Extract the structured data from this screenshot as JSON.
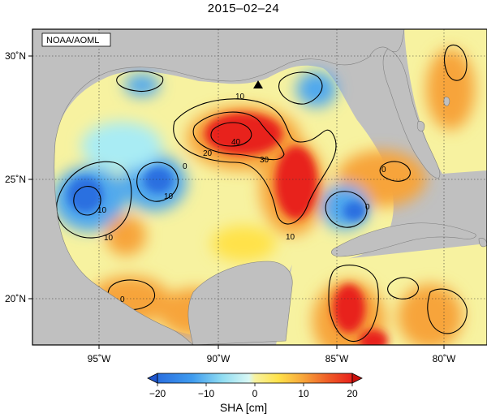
{
  "title": "2015‒02‒24",
  "credit": "NOAA/AOML",
  "axes": {
    "lon_ticks": [
      {
        "value": -95,
        "label": "95˚W"
      },
      {
        "value": -90,
        "label": "90˚W"
      },
      {
        "value": -85,
        "label": "85˚W"
      },
      {
        "value": -80,
        "label": "80˚W"
      }
    ],
    "lat_ticks": [
      {
        "value": 30,
        "label": "30˚N"
      },
      {
        "value": 25,
        "label": "25˚N"
      },
      {
        "value": 20,
        "label": "20˚N"
      }
    ],
    "lon_range": [
      -98.5,
      -77.5
    ],
    "lat_range": [
      18,
      31.3
    ],
    "grid": "dotted"
  },
  "colorbar": {
    "label": "SHA [cm]",
    "ticks": [
      "−20",
      "−10",
      "0",
      "10",
      "20"
    ],
    "range": [
      -20,
      20
    ],
    "extend": "both"
  },
  "contour_labels": [
    "10",
    "20",
    "40",
    "30",
    "0",
    "0",
    "10",
    "10",
    "0",
    "0",
    "10",
    "10"
  ],
  "colors": {
    "land": "#c0c0c0",
    "neg_strong": "#2a6fe0",
    "neg_mid": "#4fa8ee",
    "neg_light": "#a9ecf4",
    "zero": "#f7f2a0",
    "pos_light": "#ffe24a",
    "pos_mid": "#f7a43a",
    "pos_strong": "#e8211c"
  },
  "marker": {
    "name": "triangle",
    "lon": -88.5,
    "lat": 28.7
  }
}
